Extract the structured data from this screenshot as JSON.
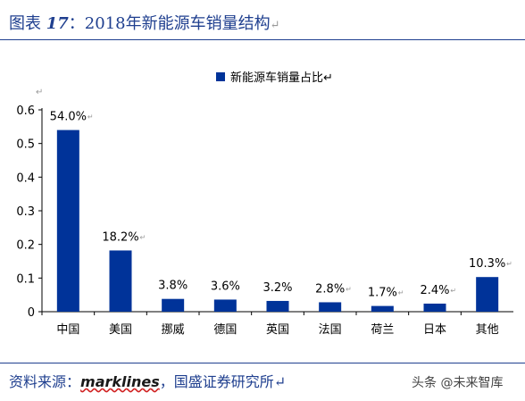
{
  "figure": {
    "label": "图表",
    "number": "17",
    "title": "2018年新能源车销量结构",
    "trail_mark": "↵"
  },
  "source": {
    "prefix": "资料来源：",
    "brand": "marklines",
    "suffix": "，国盛证券研究所↵"
  },
  "watermark": "头条 @未来智库",
  "chart_data": {
    "type": "bar",
    "legend": "新能源车销量占比↵",
    "legend_position": "top-center",
    "categories": [
      "中国",
      "美国",
      "挪威",
      "德国",
      "英国",
      "法国",
      "荷兰",
      "日本",
      "其他"
    ],
    "values": [
      0.54,
      0.182,
      0.038,
      0.036,
      0.032,
      0.028,
      0.017,
      0.024,
      0.103
    ],
    "data_labels": [
      "54.0%",
      "18.2%",
      "3.8%",
      "3.6%",
      "3.2%",
      "2.8%",
      "1.7%",
      "2.4%",
      "10.3%"
    ],
    "label_marks": [
      "↵",
      "↵",
      "",
      "",
      "",
      "↵",
      "↵",
      "↵",
      "↵"
    ],
    "yticks": [
      0,
      0.1,
      0.2,
      0.3,
      0.4,
      0.5,
      0.6
    ],
    "ytick_labels": [
      "0",
      "0.1",
      "0.2",
      "0.3",
      "0.4",
      "0.5",
      "0.6"
    ],
    "ylim": [
      0,
      0.6
    ],
    "grid": false,
    "bar_color": "#003399"
  }
}
